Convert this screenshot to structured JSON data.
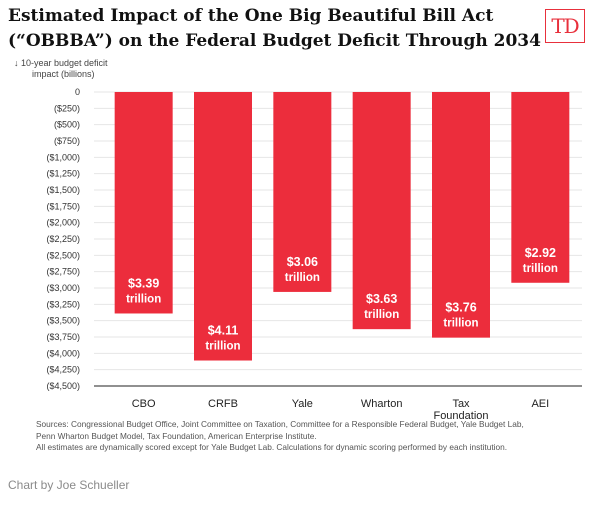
{
  "header": {
    "title_line1": "Estimated Impact of the One Big Beautiful Bill Act",
    "title_line2": "(“OBBBA”) on the Federal Budget Deficit Through 2034",
    "logo_text": "TD"
  },
  "chart_data": {
    "type": "bar",
    "title": "Estimated Impact of the One Big Beautiful Bill Act (“OBBBA”) on the Federal Budget Deficit Through 2034",
    "ylabel_line1": "↓ 10-year budget deficit",
    "ylabel_line2": "impact (billions)",
    "xlabel": "",
    "categories": [
      {
        "lines": [
          "CBO"
        ]
      },
      {
        "lines": [
          "CRFB"
        ]
      },
      {
        "lines": [
          "Yale"
        ]
      },
      {
        "lines": [
          "Wharton"
        ]
      },
      {
        "lines": [
          "Tax",
          "Foundation"
        ]
      },
      {
        "lines": [
          "AEI"
        ]
      }
    ],
    "values": [
      -3390,
      -4110,
      -3060,
      -3630,
      -3760,
      -2920
    ],
    "value_labels": [
      [
        "$3.39",
        "trillion"
      ],
      [
        "$4.11",
        "trillion"
      ],
      [
        "$3.06",
        "trillion"
      ],
      [
        "$3.63",
        "trillion"
      ],
      [
        "$3.76",
        "trillion"
      ],
      [
        "$2.92",
        "trillion"
      ]
    ],
    "yticks": [
      0,
      -250,
      -500,
      -750,
      -1000,
      -1250,
      -1500,
      -1750,
      -2000,
      -2250,
      -2500,
      -2750,
      -3000,
      -3250,
      -3500,
      -3750,
      -4000,
      -4250,
      -4500
    ],
    "ytick_labels": [
      "0",
      "($250)",
      "($500)",
      "($750)",
      "($1,000)",
      "($1,250)",
      "($1,500)",
      "($1,750)",
      "($2,000)",
      "($2,250)",
      "($2,500)",
      "($2,750)",
      "($3,000)",
      "($3,250)",
      "($3,500)",
      "($3,750)",
      "($4,000)",
      "($4,250)",
      "($4,500)"
    ],
    "ylim": [
      -4500,
      0
    ],
    "grid": true,
    "bar_color": "#ec2d3c"
  },
  "footer": {
    "sources_line1": "Sources: Congressional Budget Office, Joint Committee on Taxation, Committee for a Responsible Federal Budget, Yale Budget Lab,",
    "sources_line2": "Penn Wharton Budget Model, Tax Foundation, American Enterprise Institute.",
    "sources_line3": "All estimates are dynamically scored except for Yale Budget Lab. Calculations for dynamic scoring performed by each institution.",
    "credit": "Chart by Joe Schueller"
  }
}
